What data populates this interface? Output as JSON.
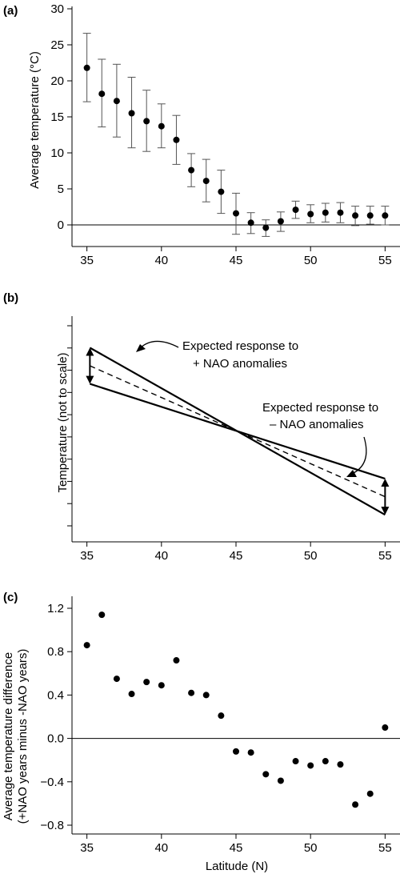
{
  "colors": {
    "ink": "#000000",
    "error_bar": "#555555",
    "background": "#ffffff"
  },
  "chart_data": [
    {
      "panel": "(a)",
      "type": "scatter",
      "ylabel": "Average temperature (°C)",
      "xlim": [
        34,
        56
      ],
      "ylim": [
        -3,
        30
      ],
      "xticks": [
        35,
        40,
        45,
        50,
        55
      ],
      "yticks": [
        0,
        5,
        10,
        15,
        20,
        25,
        30
      ],
      "zero_line": true,
      "error_bars": true,
      "points": [
        {
          "x": 35,
          "y": 21.8,
          "lo": 17.1,
          "hi": 26.6
        },
        {
          "x": 36,
          "y": 18.2,
          "lo": 13.6,
          "hi": 23.0
        },
        {
          "x": 37,
          "y": 17.2,
          "lo": 12.2,
          "hi": 22.3
        },
        {
          "x": 38,
          "y": 15.5,
          "lo": 10.7,
          "hi": 20.5
        },
        {
          "x": 39,
          "y": 14.4,
          "lo": 10.2,
          "hi": 18.7
        },
        {
          "x": 40,
          "y": 13.7,
          "lo": 10.7,
          "hi": 16.8
        },
        {
          "x": 41,
          "y": 11.8,
          "lo": 8.4,
          "hi": 15.2
        },
        {
          "x": 42,
          "y": 7.6,
          "lo": 5.3,
          "hi": 9.9
        },
        {
          "x": 43,
          "y": 6.1,
          "lo": 3.2,
          "hi": 9.1
        },
        {
          "x": 44,
          "y": 4.6,
          "lo": 1.6,
          "hi": 7.6
        },
        {
          "x": 45,
          "y": 1.6,
          "lo": -1.3,
          "hi": 4.4
        },
        {
          "x": 46,
          "y": 0.3,
          "lo": -1.2,
          "hi": 1.7
        },
        {
          "x": 47,
          "y": -0.4,
          "lo": -1.6,
          "hi": 0.7
        },
        {
          "x": 48,
          "y": 0.5,
          "lo": -0.9,
          "hi": 1.8
        },
        {
          "x": 49,
          "y": 2.1,
          "lo": 0.9,
          "hi": 3.3
        },
        {
          "x": 50,
          "y": 1.5,
          "lo": 0.3,
          "hi": 2.8
        },
        {
          "x": 51,
          "y": 1.7,
          "lo": 0.4,
          "hi": 3.0
        },
        {
          "x": 52,
          "y": 1.7,
          "lo": 0.3,
          "hi": 3.1
        },
        {
          "x": 53,
          "y": 1.3,
          "lo": -0.1,
          "hi": 2.6
        },
        {
          "x": 54,
          "y": 1.3,
          "lo": 0.1,
          "hi": 2.6
        },
        {
          "x": 55,
          "y": 1.3,
          "lo": 0.0,
          "hi": 2.6
        }
      ]
    },
    {
      "panel": "(b)",
      "type": "line",
      "ylabel": "Temperature (not to scale)",
      "xlim": [
        34,
        56
      ],
      "xticks": [
        35,
        40,
        45,
        50,
        55
      ],
      "ytick_count": 10,
      "ylim": [
        0,
        100
      ],
      "pivot_x": 45,
      "series": [
        {
          "style": "solid",
          "x": [
            35.2,
            55
          ],
          "y": [
            86,
            12
          ]
        },
        {
          "style": "dashed",
          "x": [
            35.2,
            55
          ],
          "y": [
            78,
            20
          ]
        },
        {
          "style": "solid",
          "x": [
            35.2,
            55
          ],
          "y": [
            70,
            28
          ]
        }
      ],
      "double_arrows": [
        {
          "x": 35.2,
          "y1": 86,
          "y2": 70
        },
        {
          "x": 55,
          "y1": 28,
          "y2": 12
        }
      ],
      "annotations": [
        {
          "lines": [
            "Expected response to",
            "+ NAO anomalies"
          ]
        },
        {
          "lines": [
            "Expected response to",
            "– NAO anomalies"
          ]
        }
      ]
    },
    {
      "panel": "(c)",
      "type": "scatter",
      "xlabel": "Latitude (N)",
      "ylabel_lines": [
        "Average temperature difference",
        "(+NAO years minus -NAO years)"
      ],
      "xlim": [
        34,
        56
      ],
      "ylim": [
        -0.8,
        1.2
      ],
      "xticks": [
        35,
        40,
        45,
        50,
        55
      ],
      "yticks": [
        -0.8,
        -0.4,
        0.0,
        0.4,
        0.8,
        1.2
      ],
      "ytick_labels": [
        "−0.8",
        "−0.4",
        "0.0",
        "0.4",
        "0.8",
        "1.2"
      ],
      "zero_line": true,
      "points": [
        {
          "x": 35,
          "y": 0.86
        },
        {
          "x": 36,
          "y": 1.14
        },
        {
          "x": 37,
          "y": 0.55
        },
        {
          "x": 38,
          "y": 0.41
        },
        {
          "x": 39,
          "y": 0.52
        },
        {
          "x": 40,
          "y": 0.49
        },
        {
          "x": 41,
          "y": 0.72
        },
        {
          "x": 42,
          "y": 0.42
        },
        {
          "x": 43,
          "y": 0.4
        },
        {
          "x": 44,
          "y": 0.21
        },
        {
          "x": 45,
          "y": -0.12
        },
        {
          "x": 46,
          "y": -0.13
        },
        {
          "x": 47,
          "y": -0.33
        },
        {
          "x": 48,
          "y": -0.39
        },
        {
          "x": 49,
          "y": -0.21
        },
        {
          "x": 50,
          "y": -0.25
        },
        {
          "x": 51,
          "y": -0.21
        },
        {
          "x": 52,
          "y": -0.24
        },
        {
          "x": 53,
          "y": -0.61
        },
        {
          "x": 54,
          "y": -0.51
        },
        {
          "x": 55,
          "y": 0.1
        }
      ]
    }
  ]
}
